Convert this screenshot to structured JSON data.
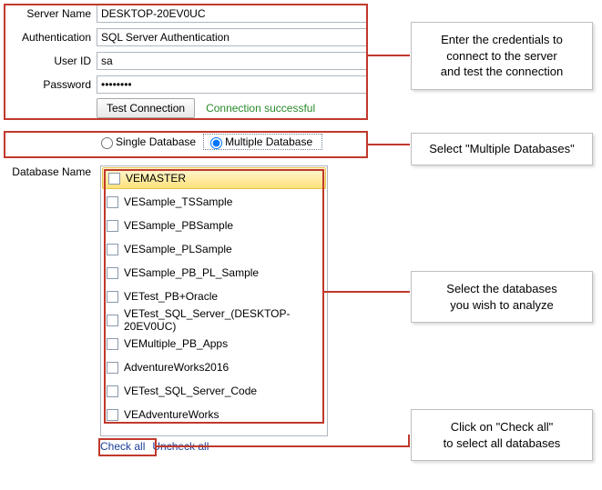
{
  "colors": {
    "highlight_border": "#c0392b",
    "status_text": "#2a8a2a",
    "link": "#1a3e9a",
    "input_border": "#aeb6bf",
    "selected_bg_top": "#fff7d6",
    "selected_bg_bottom": "#ffe27a",
    "callout_border": "#bfbfbf"
  },
  "form": {
    "server_name_label": "Server Name",
    "server_name_value": "DESKTOP-20EV0UC",
    "auth_label": "Authentication",
    "auth_value": "SQL Server Authentication",
    "user_label": "User ID",
    "user_value": "sa",
    "password_label": "Password",
    "password_value": "••••••••",
    "test_button": "Test Connection",
    "status": "Connection successful"
  },
  "mode": {
    "single_label": "Single Database",
    "multiple_label": "Multiple Database",
    "selected": "multiple"
  },
  "database": {
    "title": "Database Name",
    "items": [
      "VEMASTER",
      "VESample_TSSample",
      "VESample_PBSample",
      "VESample_PLSample",
      "VESample_PB_PL_Sample",
      "VETest_PB+Oracle",
      "VETest_SQL_Server_(DESKTOP-20EV0UC)",
      "VEMultiple_PB_Apps",
      "AdventureWorks2016",
      "VETest_SQL_Server_Code",
      "VEAdventureWorks"
    ],
    "selected_index": 0,
    "check_all": "Check all",
    "uncheck_all": "Uncheck all"
  },
  "callouts": {
    "c1_l1": "Enter the credentials to",
    "c1_l2": "connect to the server",
    "c1_l3": "and test the connection",
    "c2_l1": "Select \"Multiple Databases\"",
    "c3_l1": "Select the databases",
    "c3_l2": "you wish to analyze",
    "c4_l1": "Click on \"Check all\"",
    "c4_l2": "to select all databases"
  }
}
